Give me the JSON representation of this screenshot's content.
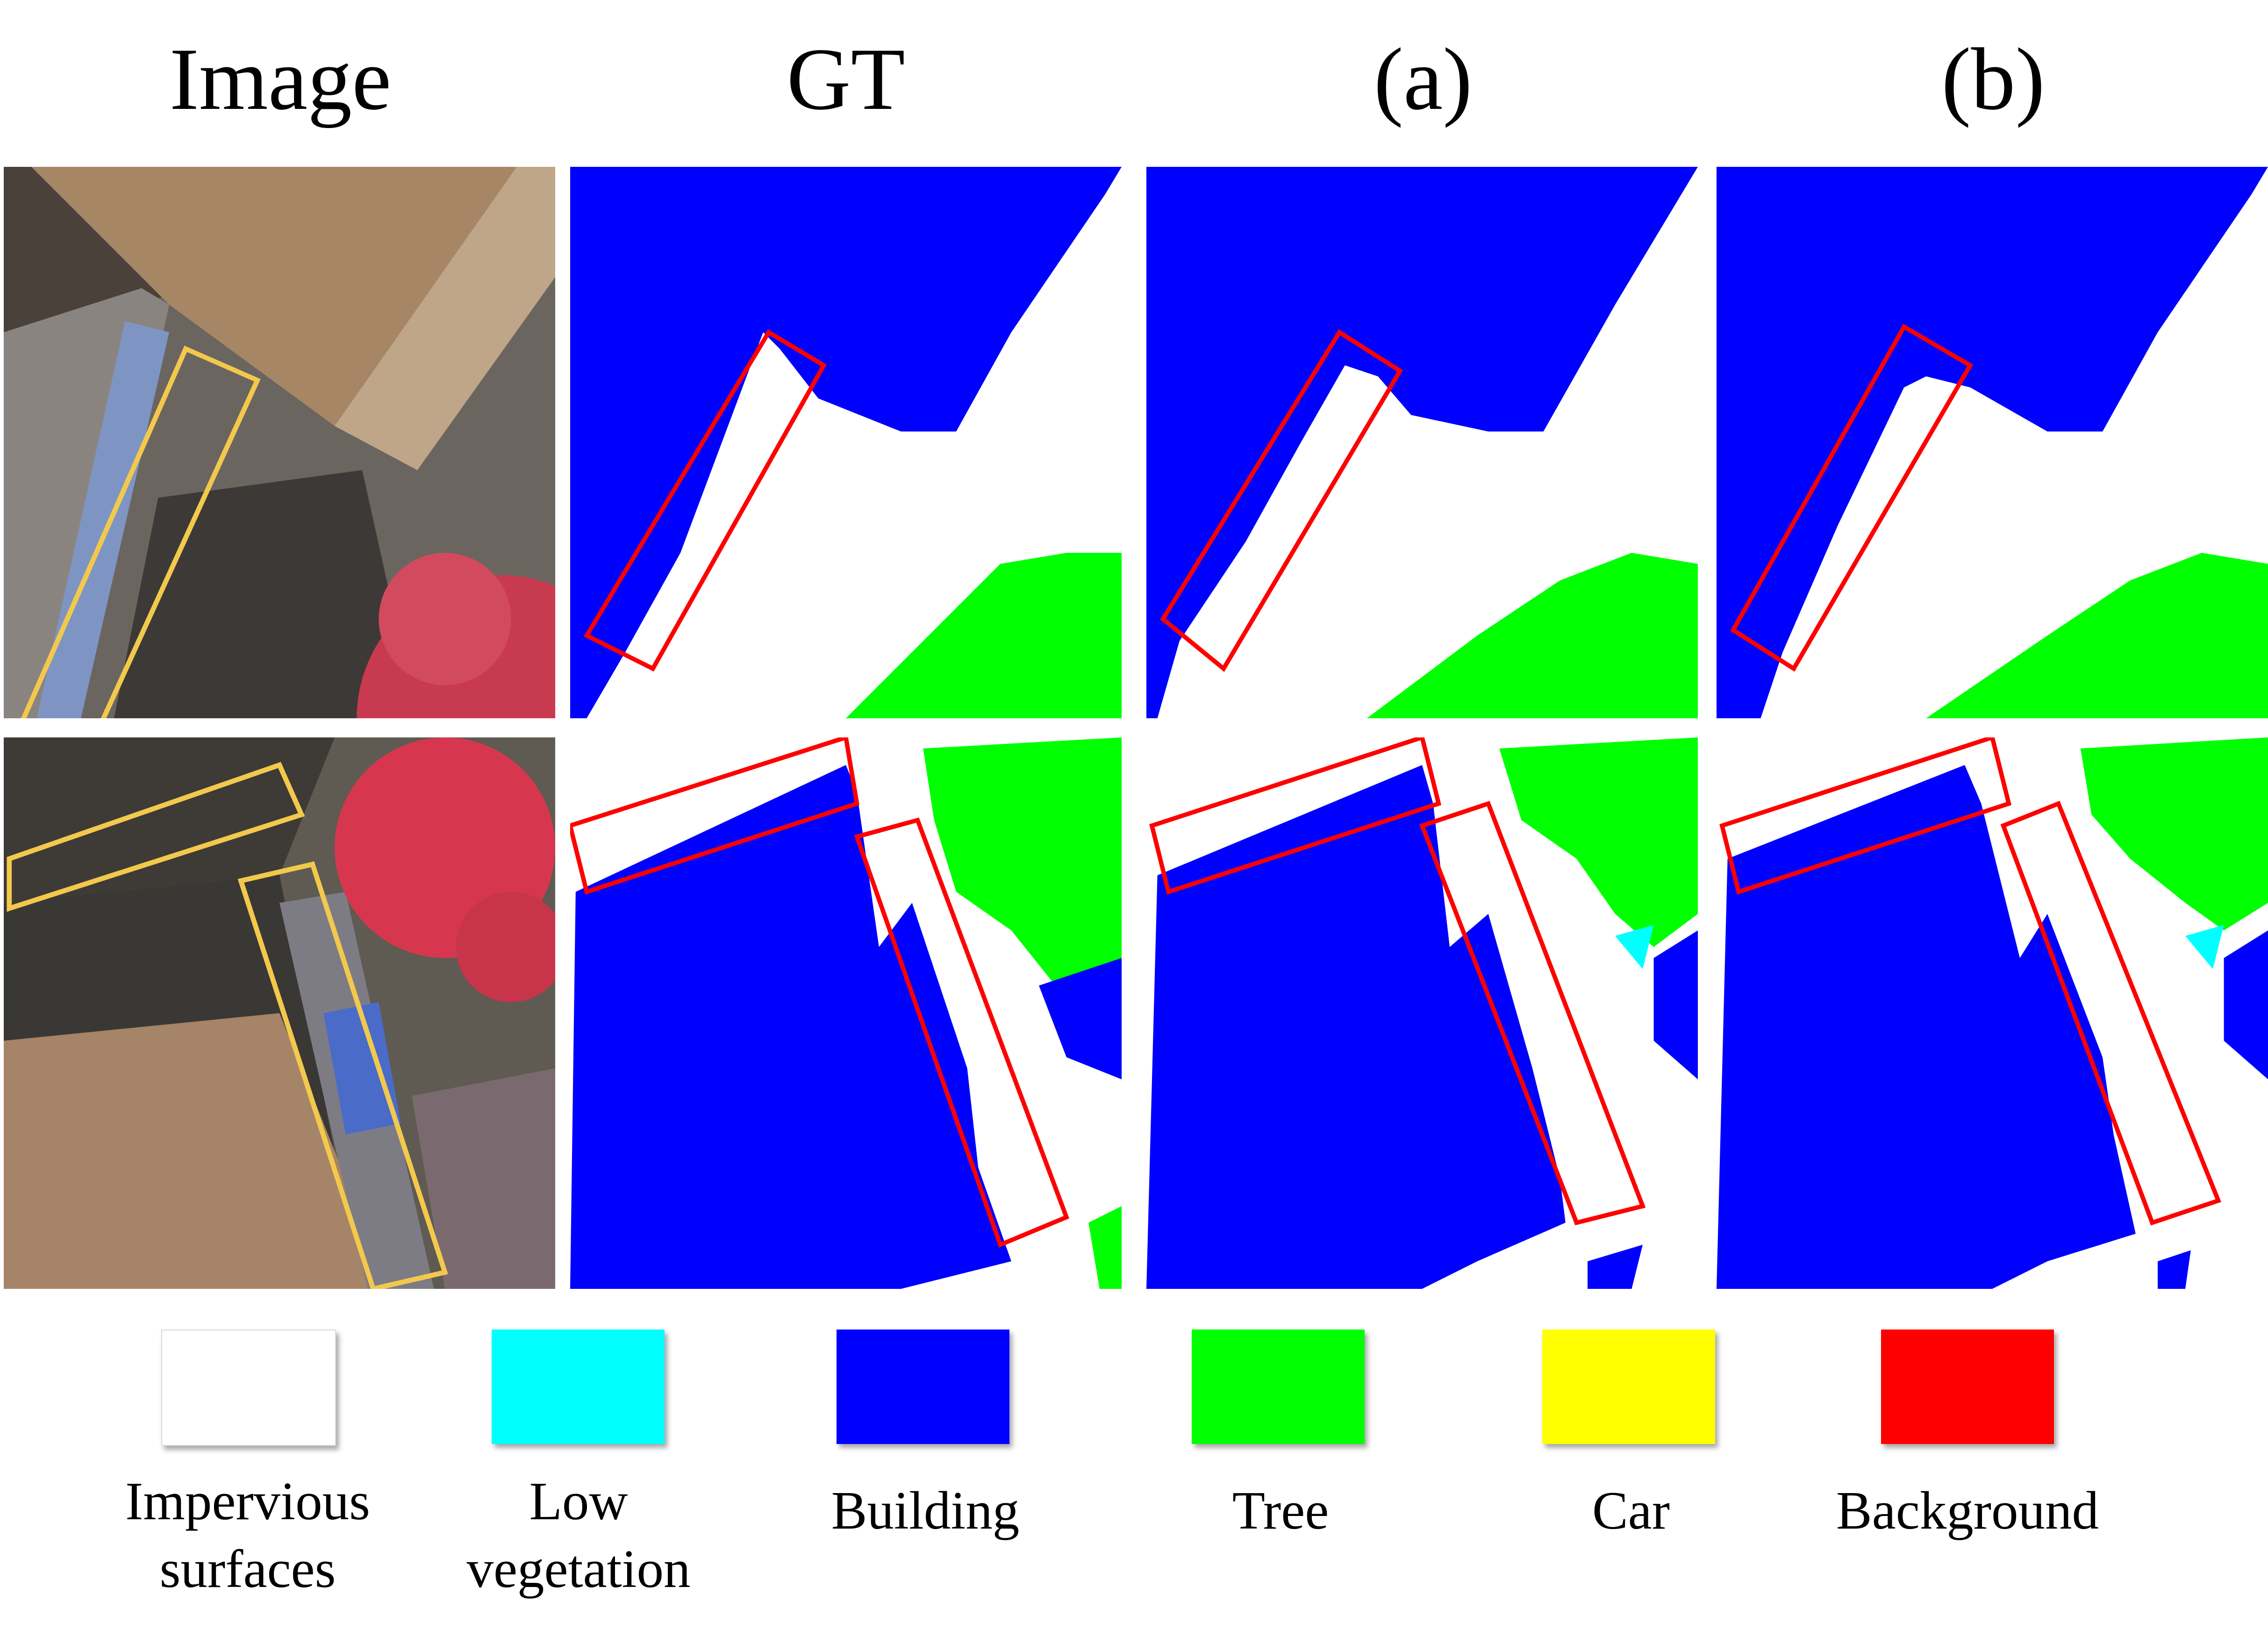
{
  "columns": {
    "image": "Image",
    "gt": "GT",
    "a": "(a)",
    "b": "(b)"
  },
  "legend": {
    "impervious": {
      "label_line1": "Impervious",
      "label_line2": "surfaces",
      "color": "#FFFFFF"
    },
    "low_vegetation": {
      "label_line1": "Low",
      "label_line2": "vegetation",
      "color": "#00FFFF"
    },
    "building": {
      "label": "Building",
      "color": "#0000FF"
    },
    "tree": {
      "label": "Tree",
      "color": "#00FF00"
    },
    "car": {
      "label": "Car",
      "color": "#FFFF00"
    },
    "background": {
      "label": "Background",
      "color": "#FF0000"
    }
  },
  "highlight_colors": {
    "image_box": "#F2C94C",
    "mask_box": "#FF0000"
  }
}
